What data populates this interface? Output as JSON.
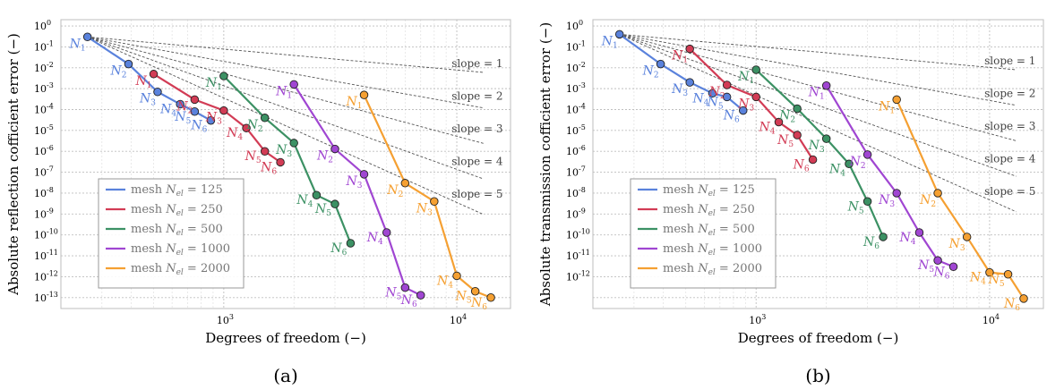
{
  "chart_data": [
    {
      "type": "line",
      "panel_label": "(a)",
      "xlabel": "Degrees of freedom (−)",
      "ylabel": "Absolute reflection cofficient error (−)",
      "xscale": "log",
      "yscale": "log",
      "xlim": [
        200,
        17000
      ],
      "ylim": [
        3e-14,
        2
      ],
      "grid": true,
      "legend_position": "lower-left",
      "x_tick_labels": [
        {
          "value": 1000,
          "base": "10",
          "exp": "3"
        },
        {
          "value": 10000,
          "base": "10",
          "exp": "4"
        }
      ],
      "y_tick_labels": [
        {
          "value": 1,
          "base": "10",
          "exp": "0"
        },
        {
          "value": 0.1,
          "base": "10",
          "exp": "-1"
        },
        {
          "value": 0.01,
          "base": "10",
          "exp": "-2"
        },
        {
          "value": 0.001,
          "base": "10",
          "exp": "-3"
        },
        {
          "value": 0.0001,
          "base": "10",
          "exp": "-4"
        },
        {
          "value": 1e-05,
          "base": "10",
          "exp": "-5"
        },
        {
          "value": 1e-06,
          "base": "10",
          "exp": "-6"
        },
        {
          "value": 1e-07,
          "base": "10",
          "exp": "-7"
        },
        {
          "value": 1e-08,
          "base": "10",
          "exp": "-8"
        },
        {
          "value": 1e-09,
          "base": "10",
          "exp": "-9"
        },
        {
          "value": 1e-10,
          "base": "10",
          "exp": "-10"
        },
        {
          "value": 1e-11,
          "base": "10",
          "exp": "-11"
        },
        {
          "value": 1e-12,
          "base": "10",
          "exp": "-12"
        },
        {
          "value": 1e-13,
          "base": "10",
          "exp": "-13"
        }
      ],
      "reference_slopes": {
        "origin": [
          260,
          0.3
        ],
        "x_end": 13000,
        "label_x": 9500,
        "lines": [
          {
            "slope": 1,
            "label": "slope = 1"
          },
          {
            "slope": 2,
            "label": "slope = 2"
          },
          {
            "slope": 3,
            "label": "slope = 3"
          },
          {
            "slope": 4,
            "label": "slope = 4"
          },
          {
            "slope": 5,
            "label": "slope = 5"
          }
        ]
      },
      "series": [
        {
          "name": "mesh N_el = 125",
          "legend": {
            "prefix": "mesh ",
            "sym": "N",
            "sub": "el",
            "suffix": " = 125"
          },
          "color": "#5a82dc",
          "point_labels": [
            "N1",
            "N2",
            "N3",
            "N4",
            "N5",
            "N6"
          ],
          "points": [
            [
              260,
              0.3
            ],
            [
              390,
              0.015
            ],
            [
              520,
              0.0007
            ],
            [
              650,
              0.00018
            ],
            [
              750,
              8e-05
            ],
            [
              880,
              3e-05
            ]
          ]
        },
        {
          "name": "mesh N_el = 250",
          "legend": {
            "prefix": "mesh ",
            "sym": "N",
            "sub": "el",
            "suffix": " = 250"
          },
          "color": "#d23c55",
          "point_labels": [
            "N1",
            "N2",
            "N3",
            "N4",
            "N5",
            "N6"
          ],
          "points": [
            [
              500,
              0.005
            ],
            [
              750,
              0.0003
            ],
            [
              1000,
              9e-05
            ],
            [
              1250,
              1.3e-05
            ],
            [
              1500,
              1e-06
            ],
            [
              1750,
              3e-07
            ]
          ]
        },
        {
          "name": "mesh N_el = 500",
          "legend": {
            "prefix": "mesh ",
            "sym": "N",
            "sub": "el",
            "suffix": " = 500"
          },
          "color": "#3c9164",
          "point_labels": [
            "N1",
            "N2",
            "N3",
            "N4",
            "N5",
            "N6"
          ],
          "points": [
            [
              1000,
              0.004
            ],
            [
              1500,
              4e-05
            ],
            [
              2000,
              2.5e-06
            ],
            [
              2500,
              8e-09
            ],
            [
              3000,
              3e-09
            ],
            [
              3500,
              4e-11
            ]
          ]
        },
        {
          "name": "mesh N_el = 1000",
          "legend": {
            "prefix": "mesh ",
            "sym": "N",
            "sub": "el",
            "suffix": " = 1000"
          },
          "color": "#a046d2",
          "point_labels": [
            "N1",
            "N2",
            "N3",
            "N4",
            "N5",
            "N6"
          ],
          "points": [
            [
              2000,
              0.0016
            ],
            [
              3000,
              1.3e-06
            ],
            [
              4000,
              8e-08
            ],
            [
              5000,
              1.3e-10
            ],
            [
              6000,
              3e-13
            ],
            [
              7000,
              1.3e-13
            ]
          ]
        },
        {
          "name": "mesh N_el = 2000",
          "legend": {
            "prefix": "mesh ",
            "sym": "N",
            "sub": "el",
            "suffix": " = 2000"
          },
          "color": "#f5a032",
          "point_labels": [
            "N1",
            "N2",
            "N3",
            "N4",
            "N5",
            "N6"
          ],
          "points": [
            [
              4000,
              0.0005
            ],
            [
              6000,
              3e-08
            ],
            [
              8000,
              4e-09
            ],
            [
              10000,
              1.1e-12
            ],
            [
              12000,
              2e-13
            ],
            [
              14000,
              1e-13
            ]
          ]
        }
      ]
    },
    {
      "type": "line",
      "panel_label": "(b)",
      "xlabel": "Degrees of freedom (−)",
      "ylabel": "Absolute transmission cofficient error (−)",
      "xscale": "log",
      "yscale": "log",
      "xlim": [
        200,
        17000
      ],
      "ylim": [
        3e-14,
        2
      ],
      "grid": true,
      "legend_position": "lower-left",
      "x_tick_labels": [
        {
          "value": 1000,
          "base": "10",
          "exp": "3"
        },
        {
          "value": 10000,
          "base": "10",
          "exp": "4"
        }
      ],
      "y_tick_labels": [
        {
          "value": 1,
          "base": "10",
          "exp": "0"
        },
        {
          "value": 0.1,
          "base": "10",
          "exp": "-1"
        },
        {
          "value": 0.01,
          "base": "10",
          "exp": "-2"
        },
        {
          "value": 0.001,
          "base": "10",
          "exp": "-3"
        },
        {
          "value": 0.0001,
          "base": "10",
          "exp": "-4"
        },
        {
          "value": 1e-05,
          "base": "10",
          "exp": "-5"
        },
        {
          "value": 1e-06,
          "base": "10",
          "exp": "-6"
        },
        {
          "value": 1e-07,
          "base": "10",
          "exp": "-7"
        },
        {
          "value": 1e-08,
          "base": "10",
          "exp": "-8"
        },
        {
          "value": 1e-09,
          "base": "10",
          "exp": "-9"
        },
        {
          "value": 1e-10,
          "base": "10",
          "exp": "-10"
        },
        {
          "value": 1e-11,
          "base": "10",
          "exp": "-11"
        },
        {
          "value": 1e-12,
          "base": "10",
          "exp": "-12"
        }
      ],
      "reference_slopes": {
        "origin": [
          260,
          0.4
        ],
        "x_end": 13000,
        "label_x": 9500,
        "lines": [
          {
            "slope": 1,
            "label": "slope = 1"
          },
          {
            "slope": 2,
            "label": "slope = 2"
          },
          {
            "slope": 3,
            "label": "slope = 3"
          },
          {
            "slope": 4,
            "label": "slope = 4"
          },
          {
            "slope": 5,
            "label": "slope = 5"
          }
        ]
      },
      "series": [
        {
          "name": "mesh N_el = 125",
          "legend": {
            "prefix": "mesh ",
            "sym": "N",
            "sub": "el",
            "suffix": " = 125"
          },
          "color": "#5a82dc",
          "point_labels": [
            "N1",
            "N2",
            "N3",
            "N4",
            "N5",
            "N6"
          ],
          "points": [
            [
              260,
              0.4
            ],
            [
              390,
              0.015
            ],
            [
              520,
              0.002
            ],
            [
              650,
              0.0006
            ],
            [
              750,
              0.0004
            ],
            [
              880,
              9e-05
            ]
          ]
        },
        {
          "name": "mesh N_el = 250",
          "legend": {
            "prefix": "mesh ",
            "sym": "N",
            "sub": "el",
            "suffix": " = 250"
          },
          "color": "#d23c55",
          "point_labels": [
            "N1",
            "N2",
            "N3",
            "N4",
            "N5",
            "N6"
          ],
          "points": [
            [
              520,
              0.08
            ],
            [
              750,
              0.0015
            ],
            [
              1000,
              0.0004
            ],
            [
              1250,
              2.5e-05
            ],
            [
              1500,
              6e-06
            ],
            [
              1750,
              4e-07
            ]
          ]
        },
        {
          "name": "mesh N_el = 500",
          "legend": {
            "prefix": "mesh ",
            "sym": "N",
            "sub": "el",
            "suffix": " = 500"
          },
          "color": "#3c9164",
          "point_labels": [
            "N1",
            "N2",
            "N3",
            "N4",
            "N5",
            "N6"
          ],
          "points": [
            [
              1000,
              0.008
            ],
            [
              1500,
              0.00011
            ],
            [
              2000,
              4e-06
            ],
            [
              2500,
              2.5e-07
            ],
            [
              3000,
              4e-09
            ],
            [
              3500,
              8e-11
            ]
          ]
        },
        {
          "name": "mesh N_el = 1000",
          "legend": {
            "prefix": "mesh ",
            "sym": "N",
            "sub": "el",
            "suffix": " = 1000"
          },
          "color": "#a046d2",
          "point_labels": [
            "N1",
            "N2",
            "N3",
            "N4",
            "N5",
            "N6"
          ],
          "points": [
            [
              2000,
              0.0014
            ],
            [
              3000,
              7e-07
            ],
            [
              4000,
              1e-08
            ],
            [
              5000,
              1.3e-10
            ],
            [
              6000,
              6e-12
            ],
            [
              7000,
              3e-12
            ]
          ]
        },
        {
          "name": "mesh N_el = 2000",
          "legend": {
            "prefix": "mesh ",
            "sym": "N",
            "sub": "el",
            "suffix": " = 2000"
          },
          "color": "#f5a032",
          "point_labels": [
            "N1",
            "N2",
            "N3",
            "N4",
            "N5",
            "N6"
          ],
          "points": [
            [
              4000,
              0.0003
            ],
            [
              6000,
              1e-08
            ],
            [
              8000,
              8e-11
            ],
            [
              10000,
              1.6e-12
            ],
            [
              12000,
              1.3e-12
            ],
            [
              14000,
              9e-14
            ]
          ]
        }
      ]
    }
  ]
}
